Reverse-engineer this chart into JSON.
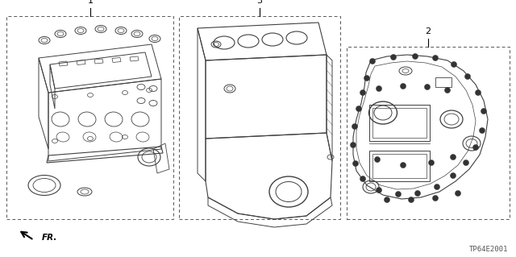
{
  "background_color": "#ffffff",
  "fig_width": 6.4,
  "fig_height": 3.19,
  "dpi": 100,
  "diagram_code": "TP64E2001",
  "line_color": "#404040",
  "dash_color": "#555555"
}
